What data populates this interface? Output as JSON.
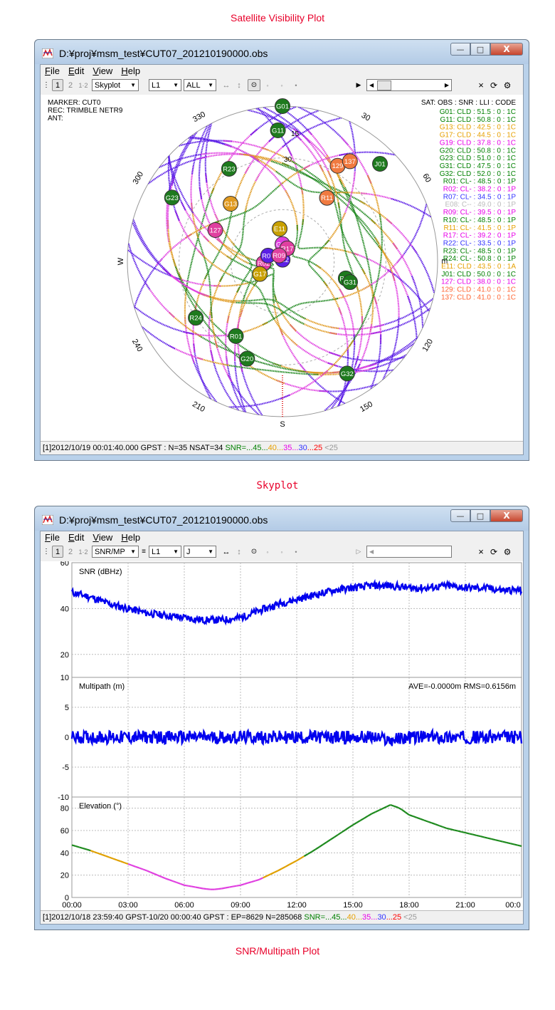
{
  "captions": {
    "top": "Satellite Visibility Plot",
    "middle": "Skyplot",
    "bottom": "SNR/Multipath Plot"
  },
  "colors": {
    "caption": "#e8002a",
    "snr_45": "#008000",
    "snr_40": "#e6a000",
    "snr_35": "#e800e8",
    "snr_30": "#3333ff",
    "snr_25": "#ff0000",
    "snr_lt25": "#999999",
    "data_blue": "#0000ee"
  },
  "window1": {
    "title": "D:¥proj¥msm_test¥CUT07_201210190000.obs",
    "menu": [
      "File",
      "Edit",
      "View",
      "Help"
    ],
    "toolbar": {
      "frame1": "1",
      "frame2": "2",
      "frame12": "1·2",
      "plot_type": "Skyplot",
      "freq": "L1",
      "sat": "ALL"
    },
    "info": {
      "marker": "MARKER: CUT0",
      "rec": "REC: TRIMBLE NETR9",
      "ant": "ANT:"
    },
    "list_header": "SAT: OBS : SNR : LLI : CODE",
    "sat_list": [
      {
        "text": "G01: CLD : 51.5 : 0 : 1C",
        "color": "#008000"
      },
      {
        "text": "G11: CLD : 50.8 : 0 : 1C",
        "color": "#008000"
      },
      {
        "text": "G13: CLD : 42.5 : 0 : 1C",
        "color": "#e6a000"
      },
      {
        "text": "G17: CLD : 44.5 : 0 : 1C",
        "color": "#e6a000"
      },
      {
        "text": "G19: CLD : 37.8 : 0 : 1C",
        "color": "#e800e8"
      },
      {
        "text": "G20: CLD : 50.8 : 0 : 1C",
        "color": "#008000"
      },
      {
        "text": "G23: CLD : 51.0 : 0 : 1C",
        "color": "#008000"
      },
      {
        "text": "G31: CLD : 47.5 : 0 : 1C",
        "color": "#008000"
      },
      {
        "text": "G32: CLD : 52.0 : 0 : 1C",
        "color": "#008000"
      },
      {
        "text": "R01: CL- : 48.5 : 0 : 1P",
        "color": "#008000"
      },
      {
        "text": "R02: CL- : 38.2 : 0 : 1P",
        "color": "#e800e8"
      },
      {
        "text": "R07: CL- : 34.5 : 0 : 1P",
        "color": "#3333ff"
      },
      {
        "text": "E08: C-- : 49.0 : 0 : 1P",
        "color": "#bbbbbb"
      },
      {
        "text": "R09: CL- : 39.5 : 0 : 1P",
        "color": "#e800e8"
      },
      {
        "text": "R10: CL- : 48.5 : 0 : 1P",
        "color": "#008000"
      },
      {
        "text": "R11: CL- : 41.5 : 0 : 1P",
        "color": "#e6a000"
      },
      {
        "text": "R17: CL- : 39.2 : 0 : 1P",
        "color": "#e800e8"
      },
      {
        "text": "R22: CL- : 33.5 : 0 : 1P",
        "color": "#3333ff"
      },
      {
        "text": "R23: CL- : 48.5 : 0 : 1P",
        "color": "#008000"
      },
      {
        "text": "R24: CL- : 50.8 : 0 : 1P",
        "color": "#008000"
      },
      {
        "text": "E11: CLD : 43.5 : 0 : 1A",
        "color": "#e6a000"
      },
      {
        "text": "J01: CLD : 50.0 : 0 : 1C",
        "color": "#008000"
      },
      {
        "text": "127: CLD : 38.0 : 0 : 1C",
        "color": "#e800e8"
      },
      {
        "text": "129: CLD : 41.0 : 0 : 1C",
        "color": "#ff6633"
      },
      {
        "text": "137: CLD : 41.0 : 0 : 1C",
        "color": "#ff6633"
      }
    ],
    "compass": {
      "n": "N",
      "s": "S",
      "w": "W",
      "e": "E"
    },
    "az_labels": [
      "30",
      "60",
      "120",
      "150",
      "210",
      "240",
      "300",
      "330"
    ],
    "el_labels": [
      "15",
      "30"
    ],
    "sats": [
      {
        "id": "R22",
        "az": 4,
        "el": 89,
        "color": "#5b1ee6"
      },
      {
        "id": "G19",
        "az": 0,
        "el": 80,
        "color": "#e040e0"
      },
      {
        "id": "E11",
        "az": 355,
        "el": 71,
        "color": "#c8a000"
      },
      {
        "id": "G13",
        "az": 318,
        "el": 45,
        "color": "#e09a20"
      },
      {
        "id": "R23",
        "az": 330,
        "el": 28,
        "color": "#1e7a1e"
      },
      {
        "id": "R11",
        "az": 35,
        "el": 45,
        "color": "#f07a40"
      },
      {
        "id": "129",
        "az": 30,
        "el": 26,
        "color": "#f07a40"
      },
      {
        "id": "137",
        "az": 34,
        "el": 20,
        "color": "#f07a40"
      },
      {
        "id": "G11",
        "az": 358,
        "el": 14,
        "color": "#1e7a1e"
      },
      {
        "id": "J01",
        "az": 45,
        "el": 10,
        "color": "#1e7a1e"
      },
      {
        "id": "127",
        "az": 295,
        "el": 47,
        "color": "#e040a0"
      },
      {
        "id": "G23",
        "az": 300,
        "el": 16,
        "color": "#1e7a1e"
      },
      {
        "id": "G01",
        "az": 0,
        "el": 0,
        "color": "#1e7a1e"
      },
      {
        "id": "R02",
        "az": 265,
        "el": 79,
        "color": "#e040a0"
      },
      {
        "id": "R10",
        "az": 105,
        "el": 52,
        "color": "#1e7a1e"
      },
      {
        "id": "G31",
        "az": 107,
        "el": 49,
        "color": "#1e7a1e"
      },
      {
        "id": "R24",
        "az": 237,
        "el": 30,
        "color": "#1e7a1e"
      },
      {
        "id": "G20",
        "az": 200,
        "el": 30,
        "color": "#1e7a1e"
      },
      {
        "id": "G32",
        "az": 150,
        "el": 15,
        "color": "#1e7a1e"
      },
      {
        "id": "R01",
        "az": 212,
        "el": 39,
        "color": "#1e7a1e"
      },
      {
        "id": "R07",
        "az": 112,
        "el": 99,
        "color": "#5b1ee6"
      },
      {
        "id": "G17",
        "az": 241,
        "el": 75,
        "color": "#c8a000"
      },
      {
        "id": "R17",
        "az": 200,
        "el": 98,
        "color": "#e040a0"
      },
      {
        "id": "R09",
        "az": 150,
        "el": 94,
        "color": "#e040a0"
      }
    ],
    "status": {
      "prefix": "[1]2012/10/19 00:01:40.000 GPST : N=35 NSAT=34 ",
      "snr_label": "SNR=...45...",
      "v40": "40",
      "sep1": "...",
      "v35": "35",
      "sep2": "...",
      "v30": "30",
      "sep3": "...",
      "v25": "25",
      "lt25": " <25"
    }
  },
  "window2": {
    "title": "D:¥proj¥msm_test¥CUT07_201210190000.obs",
    "menu": [
      "File",
      "Edit",
      "View",
      "Help"
    ],
    "toolbar": {
      "frame1": "1",
      "frame2": "2",
      "frame12": "1·2",
      "plot_type": "SNR/MP",
      "freq": "L1",
      "sat": "J"
    },
    "panels": {
      "snr_title": "SNR (dBHz)",
      "mp_title": "Multipath (m)",
      "mp_stats": "AVE=-0.0000m RMS=0.6156m",
      "el_title": "Elevation (°)"
    },
    "snr_ticks": [
      "60",
      "40",
      "20"
    ],
    "mp_ticks": [
      "10",
      "5",
      "0",
      "-5",
      "-10"
    ],
    "el_ticks": [
      "80",
      "60",
      "40",
      "20",
      "0"
    ],
    "time_ticks": [
      "00:00",
      "03:00",
      "06:00",
      "09:00",
      "12:00",
      "15:00",
      "18:00",
      "21:00",
      "00:0"
    ],
    "status": {
      "prefix": "[1]2012/10/18 23:59:40 GPST-10/20 00:00:40 GPST : EP=8629 N=285068 ",
      "snr_label": "SNR=...45...",
      "v40": "40",
      "sep1": "...",
      "v35": "35",
      "sep2": "...",
      "v30": "30",
      "sep3": "...",
      "v25": "25",
      "lt25": " <25"
    },
    "chart_data": {
      "type": "line",
      "x_unit": "hours",
      "xlim": [
        0,
        24
      ],
      "series": [
        {
          "panel": "snr",
          "ylim": [
            10,
            60
          ],
          "x": [
            0,
            1,
            2,
            3,
            4,
            5,
            6,
            7,
            8,
            9,
            10,
            11,
            12,
            13,
            14,
            15,
            16,
            17,
            18,
            19,
            20,
            21,
            22,
            23,
            24
          ],
          "y": [
            47,
            45,
            42,
            40,
            38,
            37,
            36,
            35,
            35,
            36,
            39,
            42,
            44,
            46,
            48,
            49,
            50,
            50,
            49,
            49,
            50,
            49,
            49,
            48,
            48
          ]
        },
        {
          "panel": "mp",
          "ylim": [
            -10,
            10
          ],
          "x": [
            0,
            2,
            4,
            6,
            8,
            10,
            12,
            14,
            16,
            17,
            18,
            20,
            22,
            24
          ],
          "y": [
            0,
            0,
            0,
            0,
            0,
            0,
            0,
            0,
            0,
            -0.5,
            0,
            0,
            0,
            0
          ]
        },
        {
          "panel": "el",
          "ylim": [
            0,
            90
          ],
          "x": [
            0,
            1,
            2,
            3,
            4,
            5,
            6,
            7,
            7.5,
            8,
            9,
            10,
            11,
            12,
            13,
            14,
            15,
            16,
            17,
            17.5,
            18,
            19,
            20,
            21,
            22,
            23,
            24
          ],
          "y": [
            47,
            42,
            36,
            30,
            24,
            17,
            11,
            8,
            7,
            8,
            11,
            16,
            24,
            33,
            43,
            54,
            65,
            75,
            83,
            80,
            74,
            68,
            62,
            58,
            54,
            50,
            46
          ]
        }
      ]
    }
  }
}
